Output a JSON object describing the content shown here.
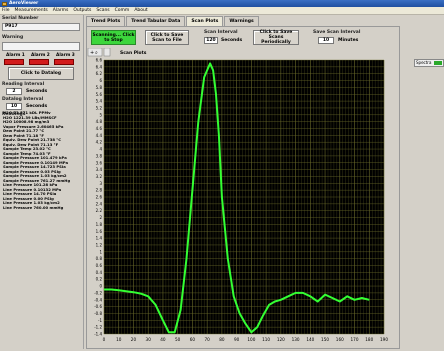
{
  "window": {
    "title": "AeroViewer"
  },
  "menu": [
    "File",
    "Measurements",
    "Alarms",
    "Outputs",
    "Scans",
    "Comm",
    "About"
  ],
  "left": {
    "serial_label": "Serial Number",
    "serial_value": "P917",
    "warning_label": "Warning",
    "warning_value": "",
    "alarms": [
      "Alarm 1",
      "Alarm 2",
      "Alarm 3"
    ],
    "datalog_button": "Click to Datalog",
    "reading_interval_label": "Reading Interval",
    "reading_interval_value": "2",
    "reading_interval_unit": "Seconds",
    "datalog_interval_label": "Datalog Interval",
    "datalog_interval_value": "10",
    "datalog_interval_unit": "Seconds",
    "readings_label": "Readings",
    "readings": [
      "H2O 23.571 kDL PPMv",
      "H2O 1221.39 LBs/MMSCF",
      "H2O 10008.98 mg/m3",
      "Vapor Pressure 2.60465 kPa",
      "Dew Point 21.77 °C",
      "Dew Point 71.18 °F",
      "Equiv. Dew Point 21.738 °C",
      "Equiv. Dew Point 71.13 °F",
      "Sample Temp 23.02 °C",
      "Sample Temp 74.03 °F",
      "Sample Pressure 101.479 kPa",
      "Sample Pressure 0.10149 MPa",
      "Sample Pressure 14.723 PSIa",
      "Sample Pressure 0.03 PSIg",
      "Sample Pressure 1.03 kg/cm2",
      "Sample Pressure 761.27 mmHg",
      "Line Pressure 101.28 kPa",
      "Line Pressure 0.10132 MPa",
      "Line Pressure 14.70 PSIa",
      "Line Pressure 0.00 PSIg",
      "Line Pressure 1.03 kg/cm2",
      "Line Pressure 760.00 mmHg"
    ]
  },
  "tabs": [
    "Trend Plots",
    "Trend Tabular Data",
    "Scan Plots",
    "Warnings"
  ],
  "active_tab": "Scan Plots",
  "scan": {
    "scanning_button": "Scanning... Click to Stop",
    "save_scan_button": "Click to Save Scan to File",
    "scan_interval_label": "Scan Interval",
    "scan_interval_value": "120",
    "scan_interval_unit": "Seconds",
    "save_periodically_button": "Click to Save Scans Periodically",
    "save_scan_interval_label": "Save Scan Interval",
    "save_scan_interval_value": "10",
    "save_scan_interval_unit": "Minutes",
    "plot_title": "Scan Plots",
    "legend_label": "Spectra"
  },
  "colors": {
    "plot_bg": "#000000",
    "trace": "#33ff33",
    "grid": "#6a6a2a",
    "scan_button": "#3cd63c",
    "alarm": "#d21c1c"
  },
  "chart_data": {
    "type": "line",
    "title": "Scan Plots",
    "xlim": [
      0,
      190
    ],
    "ylim": [
      -1.4,
      6.6
    ],
    "xticks": [
      0,
      10,
      20,
      30,
      40,
      50,
      60,
      70,
      80,
      90,
      100,
      110,
      120,
      130,
      140,
      150,
      160,
      170,
      180,
      190
    ],
    "yticks": [
      "6.6",
      "6.4",
      "6.2",
      "6",
      "5.8",
      "5.6",
      "5.4",
      "5.2",
      "5",
      "4.8",
      "4.6",
      "4.4",
      "4.2",
      "4",
      "3.8",
      "3.6",
      "3.4",
      "3.2",
      "3",
      "2.8",
      "2.6",
      "2.4",
      "2.2",
      "2",
      "1.8",
      "1.6",
      "1.4",
      "1.2",
      "1",
      "0.8",
      "0.6",
      "0.4",
      "0.2",
      "0",
      "-0.2",
      "-0.4",
      "-0.6",
      "-0.8",
      "-1",
      "-1.2",
      "-1.4"
    ],
    "grid": true,
    "series": [
      {
        "x": [
          0,
          5,
          10,
          15,
          20,
          25,
          30,
          35,
          40,
          44,
          48,
          52,
          56,
          60,
          64,
          68,
          72,
          74,
          76,
          78,
          80,
          84,
          88,
          92,
          96,
          100,
          104,
          108,
          112,
          116,
          120,
          125,
          130,
          135,
          140,
          145,
          150,
          155,
          160,
          165,
          170,
          175,
          180
        ],
        "y": [
          -0.1,
          -0.1,
          -0.12,
          -0.15,
          -0.18,
          -0.22,
          -0.3,
          -0.55,
          -1.0,
          -1.35,
          -1.35,
          -0.7,
          0.8,
          2.8,
          4.8,
          6.1,
          6.5,
          6.3,
          5.6,
          4.4,
          2.6,
          0.8,
          -0.3,
          -0.8,
          -1.1,
          -1.35,
          -1.2,
          -0.85,
          -0.55,
          -0.45,
          -0.4,
          -0.3,
          -0.2,
          -0.2,
          -0.3,
          -0.45,
          -0.25,
          -0.35,
          -0.45,
          -0.3,
          -0.4,
          -0.35,
          -0.4
        ]
      }
    ]
  }
}
